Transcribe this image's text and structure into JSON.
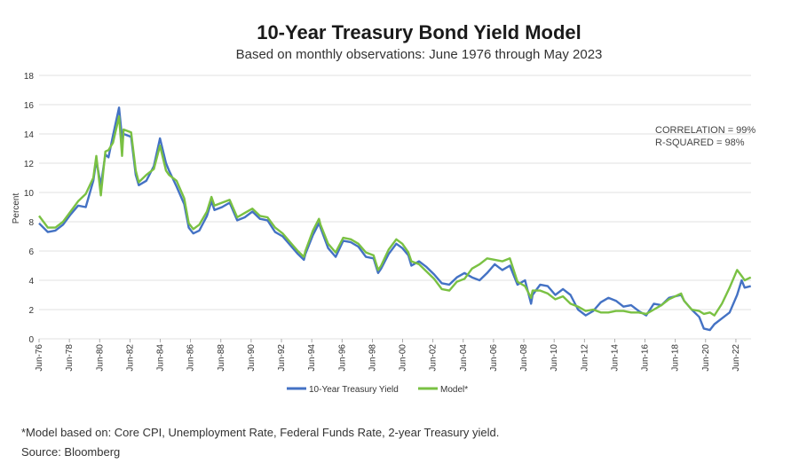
{
  "chart_data": {
    "type": "line",
    "title": "10-Year Treasury Bond Yield Model",
    "subtitle": "Based on monthly observations: June 1976 through May 2023",
    "ylabel": "Percent",
    "xlabel": "",
    "ylim": [
      0,
      18
    ],
    "yticks": [
      "0",
      "2",
      "4",
      "6",
      "8",
      "10",
      "12",
      "14",
      "16",
      "18"
    ],
    "xticks": [
      "Jun-76",
      "Jun-78",
      "Jun-80",
      "Jun-82",
      "Jun-84",
      "Jun-86",
      "Jun-88",
      "Jun-90",
      "Jun-92",
      "Jun-94",
      "Jun-96",
      "Jun-98",
      "Jun-00",
      "Jun-02",
      "Jun-04",
      "Jun-06",
      "Jun-08",
      "Jun-10",
      "Jun-12",
      "Jun-14",
      "Jun-16",
      "Jun-18",
      "Jun-20",
      "Jun-22"
    ],
    "x": [
      1976.42,
      1977.0,
      1977.5,
      1978.0,
      1978.5,
      1979.0,
      1979.5,
      1980.0,
      1980.2,
      1980.5,
      1980.8,
      1981.0,
      1981.3,
      1981.7,
      1981.9,
      1982.0,
      1982.5,
      1982.8,
      1983.0,
      1983.5,
      1984.0,
      1984.4,
      1984.8,
      1985.0,
      1985.5,
      1986.0,
      1986.3,
      1986.6,
      1987.0,
      1987.5,
      1987.8,
      1988.0,
      1988.5,
      1989.0,
      1989.5,
      1990.0,
      1990.5,
      1991.0,
      1991.5,
      1992.0,
      1992.5,
      1993.0,
      1993.5,
      1993.9,
      1994.0,
      1994.5,
      1994.9,
      1995.0,
      1995.5,
      1996.0,
      1996.5,
      1997.0,
      1997.5,
      1998.0,
      1998.5,
      1998.8,
      1999.0,
      1999.5,
      2000.0,
      2000.4,
      2000.8,
      2001.0,
      2001.5,
      2002.0,
      2002.5,
      2003.0,
      2003.5,
      2004.0,
      2004.5,
      2005.0,
      2005.5,
      2006.0,
      2006.5,
      2007.0,
      2007.5,
      2008.0,
      2008.5,
      2008.9,
      2009.0,
      2009.5,
      2010.0,
      2010.5,
      2011.0,
      2011.5,
      2012.0,
      2012.5,
      2013.0,
      2013.5,
      2014.0,
      2014.5,
      2015.0,
      2015.5,
      2016.0,
      2016.5,
      2017.0,
      2017.5,
      2018.0,
      2018.8,
      2019.0,
      2019.5,
      2020.0,
      2020.3,
      2020.7,
      2021.0,
      2021.5,
      2022.0,
      2022.5,
      2022.8,
      2023.0,
      2023.4
    ],
    "series": [
      {
        "name": "10-Year Treasury Yield",
        "color": "#4472c4",
        "values": [
          7.9,
          7.3,
          7.4,
          7.8,
          8.5,
          9.1,
          9.0,
          10.8,
          12.2,
          10.5,
          12.6,
          12.4,
          13.9,
          15.8,
          13.7,
          14.0,
          13.8,
          11.2,
          10.5,
          10.8,
          11.8,
          13.7,
          12.0,
          11.5,
          10.4,
          9.2,
          7.6,
          7.2,
          7.4,
          8.4,
          9.4,
          8.8,
          9.0,
          9.3,
          8.1,
          8.3,
          8.7,
          8.2,
          8.1,
          7.3,
          7.0,
          6.4,
          5.8,
          5.4,
          5.8,
          7.1,
          7.9,
          7.6,
          6.2,
          5.6,
          6.7,
          6.6,
          6.3,
          5.6,
          5.5,
          4.5,
          4.8,
          5.8,
          6.5,
          6.2,
          5.7,
          5.0,
          5.3,
          4.9,
          4.4,
          3.8,
          3.7,
          4.2,
          4.5,
          4.2,
          4.0,
          4.5,
          5.1,
          4.7,
          5.0,
          3.7,
          4.0,
          2.4,
          3.0,
          3.7,
          3.6,
          3.0,
          3.4,
          3.0,
          2.0,
          1.6,
          1.9,
          2.5,
          2.8,
          2.6,
          2.2,
          2.3,
          1.9,
          1.6,
          2.4,
          2.3,
          2.8,
          3.0,
          2.6,
          2.0,
          1.5,
          0.7,
          0.6,
          1.0,
          1.4,
          1.8,
          3.0,
          4.0,
          3.5,
          3.6
        ]
      },
      {
        "name": "Model*",
        "color": "#7ac143",
        "values": [
          8.4,
          7.6,
          7.6,
          8.0,
          8.7,
          9.4,
          9.9,
          11.0,
          12.5,
          9.8,
          12.8,
          12.9,
          13.4,
          15.2,
          12.5,
          14.3,
          14.1,
          11.5,
          10.7,
          11.2,
          11.6,
          13.2,
          11.5,
          11.2,
          10.8,
          9.6,
          7.9,
          7.5,
          7.8,
          8.7,
          9.7,
          9.1,
          9.3,
          9.5,
          8.3,
          8.6,
          8.9,
          8.4,
          8.3,
          7.6,
          7.2,
          6.6,
          6.0,
          5.6,
          6.0,
          7.4,
          8.2,
          7.8,
          6.5,
          5.9,
          6.9,
          6.8,
          6.5,
          5.9,
          5.7,
          4.7,
          5.0,
          6.1,
          6.8,
          6.5,
          5.9,
          5.3,
          5.1,
          4.6,
          4.1,
          3.4,
          3.3,
          3.9,
          4.1,
          4.8,
          5.1,
          5.5,
          5.4,
          5.3,
          5.5,
          3.9,
          3.6,
          2.8,
          3.3,
          3.3,
          3.1,
          2.7,
          2.9,
          2.4,
          2.2,
          1.9,
          2.0,
          1.8,
          1.8,
          1.9,
          1.9,
          1.8,
          1.8,
          1.7,
          2.0,
          2.3,
          2.7,
          3.1,
          2.6,
          2.0,
          1.9,
          1.7,
          1.8,
          1.6,
          2.4,
          3.5,
          4.7,
          4.3,
          4.0,
          4.2
        ]
      }
    ],
    "annotations": [
      "CORRELATION = 99%",
      "R-SQUARED = 98%"
    ],
    "legend": {
      "placement": "bottom-center",
      "items": [
        "10-Year Treasury Yield",
        "Model*"
      ]
    },
    "grid": true
  },
  "footnotes": {
    "model_note": "*Model based on: Core CPI, Unemployment Rate, Federal Funds Rate, 2-year Treasury yield.",
    "source": "Source: Bloomberg"
  }
}
